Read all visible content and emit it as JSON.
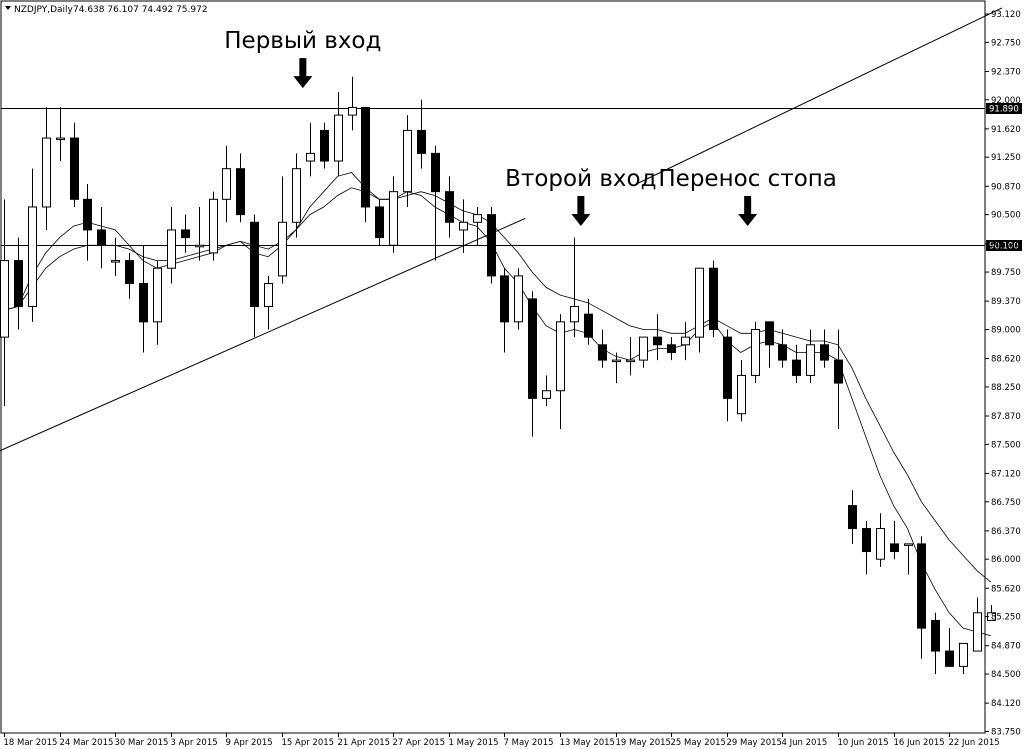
{
  "header": {
    "symbol": "NZDJPY,Daily",
    "ohlc": "74.638 76.107 74.492 75.972"
  },
  "annotations": [
    {
      "text": "Первый вход",
      "x": 21.5,
      "anchor_price": 92.1,
      "arrow": true
    },
    {
      "text": "Второй вход",
      "x": 41.5,
      "anchor_price": 90.3,
      "arrow": true
    },
    {
      "text": "Перенос стопа",
      "x": 53.5,
      "anchor_price": 90.3,
      "arrow": true
    }
  ],
  "levels": [
    {
      "price": 91.89,
      "label": "91.890"
    },
    {
      "price": 90.1,
      "label": "90.100"
    }
  ],
  "chart_data": {
    "type": "candlestick",
    "symbol": "NZDJPY",
    "timeframe": "Daily",
    "ylim": [
      83.73,
      93.29
    ],
    "y_ticks": [
      "93.120",
      "92.750",
      "92.370",
      "92.000",
      "91.620",
      "91.250",
      "90.870",
      "90.500",
      "90.120",
      "89.750",
      "89.370",
      "89.000",
      "88.620",
      "88.250",
      "87.870",
      "87.500",
      "87.120",
      "86.750",
      "86.370",
      "86.000",
      "85.620",
      "85.250",
      "84.870",
      "84.500",
      "84.120",
      "83.750"
    ],
    "x_ticks": [
      {
        "index": 0,
        "label": "18 Mar 2015"
      },
      {
        "index": 4,
        "label": "24 Mar 2015"
      },
      {
        "index": 8,
        "label": "30 Mar 2015"
      },
      {
        "index": 12,
        "label": "3 Apr 2015"
      },
      {
        "index": 16,
        "label": "9 Apr 2015"
      },
      {
        "index": 20,
        "label": "15 Apr 2015"
      },
      {
        "index": 24,
        "label": "21 Apr 2015"
      },
      {
        "index": 28,
        "label": "27 Apr 2015"
      },
      {
        "index": 32,
        "label": "1 May 2015"
      },
      {
        "index": 36,
        "label": "7 May 2015"
      },
      {
        "index": 40,
        "label": "13 May 2015"
      },
      {
        "index": 44,
        "label": "19 May 2015"
      },
      {
        "index": 48,
        "label": "25 May 2015"
      },
      {
        "index": 52,
        "label": "29 May 2015"
      },
      {
        "index": 56,
        "label": "4 Jun 2015"
      },
      {
        "index": 60,
        "label": "10 Jun 2015"
      },
      {
        "index": 64,
        "label": "16 Jun 2015"
      },
      {
        "index": 68,
        "label": "22 Jun 2015"
      }
    ],
    "candles": [
      {
        "o": 88.9,
        "h": 90.7,
        "l": 88.0,
        "c": 89.9
      },
      {
        "o": 89.9,
        "h": 90.2,
        "l": 89.0,
        "c": 89.3
      },
      {
        "o": 89.3,
        "h": 91.1,
        "l": 89.1,
        "c": 90.6
      },
      {
        "o": 90.6,
        "h": 91.9,
        "l": 90.3,
        "c": 91.5
      },
      {
        "o": 91.5,
        "h": 91.9,
        "l": 91.2,
        "c": 91.5
      },
      {
        "o": 91.5,
        "h": 91.7,
        "l": 90.6,
        "c": 90.7
      },
      {
        "o": 90.7,
        "h": 90.9,
        "l": 89.9,
        "c": 90.3
      },
      {
        "o": 90.3,
        "h": 90.6,
        "l": 89.8,
        "c": 90.1
      },
      {
        "o": 89.9,
        "h": 90.2,
        "l": 89.7,
        "c": 89.9
      },
      {
        "o": 89.9,
        "h": 90.0,
        "l": 89.4,
        "c": 89.6
      },
      {
        "o": 89.6,
        "h": 90.1,
        "l": 88.7,
        "c": 89.1
      },
      {
        "o": 89.1,
        "h": 89.9,
        "l": 88.8,
        "c": 89.8
      },
      {
        "o": 89.8,
        "h": 90.6,
        "l": 89.6,
        "c": 90.3
      },
      {
        "o": 90.3,
        "h": 90.5,
        "l": 90.0,
        "c": 90.2
      },
      {
        "o": 90.1,
        "h": 90.6,
        "l": 89.9,
        "c": 90.1
      },
      {
        "o": 90.0,
        "h": 90.8,
        "l": 89.9,
        "c": 90.7
      },
      {
        "o": 90.7,
        "h": 91.4,
        "l": 90.4,
        "c": 91.1
      },
      {
        "o": 91.1,
        "h": 91.3,
        "l": 90.4,
        "c": 90.5
      },
      {
        "o": 90.4,
        "h": 90.5,
        "l": 88.9,
        "c": 89.3
      },
      {
        "o": 89.3,
        "h": 89.7,
        "l": 89.0,
        "c": 89.6
      },
      {
        "o": 89.7,
        "h": 91.0,
        "l": 89.6,
        "c": 90.4
      },
      {
        "o": 90.4,
        "h": 91.3,
        "l": 90.2,
        "c": 91.1
      },
      {
        "o": 91.2,
        "h": 91.7,
        "l": 91.0,
        "c": 91.3
      },
      {
        "o": 91.6,
        "h": 91.7,
        "l": 91.1,
        "c": 91.2
      },
      {
        "o": 91.2,
        "h": 92.1,
        "l": 91.0,
        "c": 91.8
      },
      {
        "o": 91.8,
        "h": 92.3,
        "l": 91.6,
        "c": 91.9
      },
      {
        "o": 91.9,
        "h": 91.9,
        "l": 90.4,
        "c": 90.6
      },
      {
        "o": 90.6,
        "h": 90.7,
        "l": 90.1,
        "c": 90.2
      },
      {
        "o": 90.1,
        "h": 91.0,
        "l": 90.0,
        "c": 90.8
      },
      {
        "o": 90.8,
        "h": 91.8,
        "l": 90.6,
        "c": 91.6
      },
      {
        "o": 91.6,
        "h": 92.0,
        "l": 91.1,
        "c": 91.3
      },
      {
        "o": 91.3,
        "h": 91.4,
        "l": 89.9,
        "c": 90.8
      },
      {
        "o": 90.8,
        "h": 91.0,
        "l": 90.2,
        "c": 90.4
      },
      {
        "o": 90.3,
        "h": 90.7,
        "l": 90.0,
        "c": 90.4
      },
      {
        "o": 90.4,
        "h": 90.6,
        "l": 90.1,
        "c": 90.5
      },
      {
        "o": 90.5,
        "h": 90.6,
        "l": 89.6,
        "c": 89.7
      },
      {
        "o": 89.7,
        "h": 89.8,
        "l": 88.7,
        "c": 89.1
      },
      {
        "o": 89.1,
        "h": 89.8,
        "l": 89.0,
        "c": 89.7
      },
      {
        "o": 89.4,
        "h": 89.5,
        "l": 87.6,
        "c": 88.1
      },
      {
        "o": 88.1,
        "h": 88.4,
        "l": 88.0,
        "c": 88.2
      },
      {
        "o": 88.2,
        "h": 89.2,
        "l": 87.7,
        "c": 89.1
      },
      {
        "o": 89.1,
        "h": 90.2,
        "l": 88.9,
        "c": 89.3
      },
      {
        "o": 89.2,
        "h": 89.4,
        "l": 88.8,
        "c": 88.9
      },
      {
        "o": 88.8,
        "h": 89.0,
        "l": 88.5,
        "c": 88.6
      },
      {
        "o": 88.6,
        "h": 88.7,
        "l": 88.3,
        "c": 88.6
      },
      {
        "o": 88.6,
        "h": 88.9,
        "l": 88.4,
        "c": 88.6
      },
      {
        "o": 88.6,
        "h": 88.9,
        "l": 88.5,
        "c": 88.9
      },
      {
        "o": 88.9,
        "h": 89.2,
        "l": 88.6,
        "c": 88.8
      },
      {
        "o": 88.8,
        "h": 88.9,
        "l": 88.6,
        "c": 88.7
      },
      {
        "o": 88.8,
        "h": 89.1,
        "l": 88.6,
        "c": 88.9
      },
      {
        "o": 88.9,
        "h": 89.8,
        "l": 88.7,
        "c": 89.8
      },
      {
        "o": 89.8,
        "h": 89.9,
        "l": 88.9,
        "c": 89.0
      },
      {
        "o": 88.9,
        "h": 89.0,
        "l": 87.8,
        "c": 88.1
      },
      {
        "o": 87.9,
        "h": 88.6,
        "l": 87.8,
        "c": 88.4
      },
      {
        "o": 88.4,
        "h": 89.1,
        "l": 88.3,
        "c": 89.0
      },
      {
        "o": 89.1,
        "h": 89.1,
        "l": 88.5,
        "c": 88.8
      },
      {
        "o": 88.8,
        "h": 89.0,
        "l": 88.5,
        "c": 88.6
      },
      {
        "o": 88.6,
        "h": 88.8,
        "l": 88.3,
        "c": 88.4
      },
      {
        "o": 88.4,
        "h": 89.0,
        "l": 88.3,
        "c": 88.8
      },
      {
        "o": 88.8,
        "h": 89.0,
        "l": 88.5,
        "c": 88.6
      },
      {
        "o": 88.6,
        "h": 89.0,
        "l": 87.7,
        "c": 88.3
      },
      {
        "o": 86.7,
        "h": 86.9,
        "l": 86.2,
        "c": 86.4
      },
      {
        "o": 86.4,
        "h": 86.5,
        "l": 85.8,
        "c": 86.1
      },
      {
        "o": 86.0,
        "h": 86.6,
        "l": 85.9,
        "c": 86.4
      },
      {
        "o": 86.2,
        "h": 86.5,
        "l": 86.0,
        "c": 86.1
      },
      {
        "o": 86.2,
        "h": 86.2,
        "l": 85.8,
        "c": 86.2
      },
      {
        "o": 86.2,
        "h": 86.3,
        "l": 84.7,
        "c": 85.1
      },
      {
        "o": 85.2,
        "h": 85.3,
        "l": 84.5,
        "c": 84.8
      },
      {
        "o": 84.8,
        "h": 85.1,
        "l": 84.6,
        "c": 84.6
      },
      {
        "o": 84.6,
        "h": 84.9,
        "l": 84.5,
        "c": 84.9
      },
      {
        "o": 84.8,
        "h": 85.5,
        "l": 84.8,
        "c": 85.3
      },
      {
        "o": 85.2,
        "h": 85.4,
        "l": 85.2,
        "c": 85.3
      }
    ],
    "ma_fast": [
      [
        0,
        89.25
      ],
      [
        1,
        89.3
      ],
      [
        2,
        89.7
      ],
      [
        3,
        90.0
      ],
      [
        4,
        90.2
      ],
      [
        5,
        90.35
      ],
      [
        6,
        90.4
      ],
      [
        7,
        90.35
      ],
      [
        8,
        90.3
      ],
      [
        9,
        90.1
      ],
      [
        10,
        89.9
      ],
      [
        11,
        89.8
      ],
      [
        12,
        89.85
      ],
      [
        13,
        89.9
      ],
      [
        14,
        89.95
      ],
      [
        15,
        90.0
      ],
      [
        16,
        90.1
      ],
      [
        17,
        90.15
      ],
      [
        18,
        90.0
      ],
      [
        19,
        89.95
      ],
      [
        20,
        90.1
      ],
      [
        21,
        90.3
      ],
      [
        22,
        90.6
      ],
      [
        23,
        90.8
      ],
      [
        24,
        91.0
      ],
      [
        25,
        91.05
      ],
      [
        26,
        90.85
      ],
      [
        27,
        90.7
      ],
      [
        28,
        90.7
      ],
      [
        29,
        90.8
      ],
      [
        30,
        90.75
      ],
      [
        31,
        90.6
      ],
      [
        32,
        90.5
      ],
      [
        33,
        90.4
      ],
      [
        34,
        90.35
      ],
      [
        35,
        90.15
      ],
      [
        36,
        89.8
      ],
      [
        37,
        89.6
      ],
      [
        38,
        89.3
      ],
      [
        39,
        89.05
      ],
      [
        40,
        88.95
      ],
      [
        41,
        89.0
      ],
      [
        42,
        88.95
      ],
      [
        43,
        88.75
      ],
      [
        44,
        88.65
      ],
      [
        45,
        88.6
      ],
      [
        46,
        88.7
      ],
      [
        47,
        88.75
      ],
      [
        48,
        88.75
      ],
      [
        49,
        88.8
      ],
      [
        50,
        89.0
      ],
      [
        51,
        89.1
      ],
      [
        52,
        88.85
      ],
      [
        53,
        88.7
      ],
      [
        54,
        88.8
      ],
      [
        55,
        88.85
      ],
      [
        56,
        88.8
      ],
      [
        57,
        88.7
      ],
      [
        58,
        88.7
      ],
      [
        59,
        88.7
      ],
      [
        60,
        88.6
      ],
      [
        61,
        88.1
      ],
      [
        62,
        87.6
      ],
      [
        63,
        87.1
      ],
      [
        64,
        86.7
      ],
      [
        65,
        86.4
      ],
      [
        66,
        85.95
      ],
      [
        67,
        85.6
      ],
      [
        68,
        85.3
      ],
      [
        69,
        85.1
      ],
      [
        70,
        85.05
      ],
      [
        71,
        85.0
      ]
    ],
    "ma_slow": [
      [
        0,
        89.25
      ],
      [
        1,
        89.3
      ],
      [
        2,
        89.55
      ],
      [
        3,
        89.8
      ],
      [
        4,
        89.95
      ],
      [
        5,
        90.05
      ],
      [
        6,
        90.1
      ],
      [
        7,
        90.1
      ],
      [
        8,
        90.1
      ],
      [
        9,
        90.05
      ],
      [
        10,
        89.95
      ],
      [
        11,
        89.9
      ],
      [
        12,
        89.9
      ],
      [
        13,
        89.95
      ],
      [
        14,
        90.0
      ],
      [
        15,
        90.05
      ],
      [
        16,
        90.1
      ],
      [
        17,
        90.15
      ],
      [
        18,
        90.1
      ],
      [
        19,
        90.05
      ],
      [
        20,
        90.15
      ],
      [
        21,
        90.3
      ],
      [
        22,
        90.5
      ],
      [
        23,
        90.6
      ],
      [
        24,
        90.75
      ],
      [
        25,
        90.85
      ],
      [
        26,
        90.8
      ],
      [
        27,
        90.7
      ],
      [
        28,
        90.7
      ],
      [
        29,
        90.75
      ],
      [
        30,
        90.8
      ],
      [
        31,
        90.75
      ],
      [
        32,
        90.65
      ],
      [
        33,
        90.55
      ],
      [
        34,
        90.5
      ],
      [
        35,
        90.4
      ],
      [
        36,
        90.2
      ],
      [
        37,
        90.0
      ],
      [
        38,
        89.75
      ],
      [
        39,
        89.55
      ],
      [
        40,
        89.45
      ],
      [
        41,
        89.4
      ],
      [
        42,
        89.35
      ],
      [
        43,
        89.25
      ],
      [
        44,
        89.15
      ],
      [
        45,
        89.05
      ],
      [
        46,
        89.0
      ],
      [
        47,
        89.0
      ],
      [
        48,
        88.95
      ],
      [
        49,
        88.95
      ],
      [
        50,
        89.05
      ],
      [
        51,
        89.15
      ],
      [
        52,
        89.05
      ],
      [
        53,
        88.95
      ],
      [
        54,
        88.95
      ],
      [
        55,
        89.0
      ],
      [
        56,
        88.95
      ],
      [
        57,
        88.9
      ],
      [
        58,
        88.85
      ],
      [
        59,
        88.85
      ],
      [
        60,
        88.8
      ],
      [
        61,
        88.5
      ],
      [
        62,
        88.1
      ],
      [
        63,
        87.75
      ],
      [
        64,
        87.4
      ],
      [
        65,
        87.1
      ],
      [
        66,
        86.75
      ],
      [
        67,
        86.5
      ],
      [
        68,
        86.25
      ],
      [
        69,
        86.05
      ],
      [
        70,
        85.85
      ],
      [
        71,
        85.7
      ]
    ],
    "trendlines": [
      {
        "x1": -0.5,
        "y1": 87.4,
        "x2": 37.5,
        "y2": 90.45
      },
      {
        "x1": 45.5,
        "y1": 90.9,
        "x2": 71.8,
        "y2": 93.2
      }
    ]
  }
}
